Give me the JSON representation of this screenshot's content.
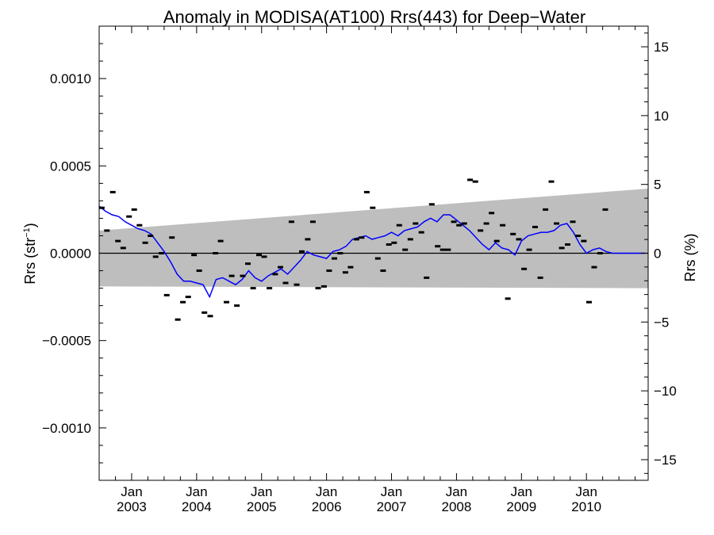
{
  "chart_data": {
    "type": "scatter",
    "title": "Anomaly in MODISA(AT100) Rrs(443) for Deep−Water",
    "ylabel_left": "Rrs (str",
    "ylabel_left_sup": "−1",
    "ylabel_left_close": ")",
    "ylabel_right": "Rrs (%)",
    "xlim": [
      2002.5,
      2010.95
    ],
    "ylim_left": [
      -0.0013,
      0.0013
    ],
    "ylim_right": [
      -16.5,
      16.5
    ],
    "y_ticks_left": [
      {
        "value": 0.001,
        "label": "0.0010"
      },
      {
        "value": 0.0005,
        "label": "0.0005"
      },
      {
        "value": 0.0,
        "label": "0.0000"
      },
      {
        "value": -0.0005,
        "label": "−0.0005"
      },
      {
        "value": -0.001,
        "label": "−0.0010"
      }
    ],
    "y_ticks_right": [
      {
        "value": 15,
        "label": "15"
      },
      {
        "value": 10,
        "label": "10"
      },
      {
        "value": 5,
        "label": "5"
      },
      {
        "value": 0,
        "label": "0"
      },
      {
        "value": -5,
        "label": "−5"
      },
      {
        "value": -10,
        "label": "−10"
      },
      {
        "value": -15,
        "label": "−15"
      }
    ],
    "x_ticks": [
      {
        "value": 2003,
        "month": "Jan",
        "year": "2003"
      },
      {
        "value": 2004,
        "month": "Jan",
        "year": "2004"
      },
      {
        "value": 2005,
        "month": "Jan",
        "year": "2005"
      },
      {
        "value": 2006,
        "month": "Jan",
        "year": "2006"
      },
      {
        "value": 2007,
        "month": "Jan",
        "year": "2007"
      },
      {
        "value": 2008,
        "month": "Jan",
        "year": "2008"
      },
      {
        "value": 2009,
        "month": "Jan",
        "year": "2009"
      },
      {
        "value": 2010,
        "month": "Jan",
        "year": "2010"
      }
    ],
    "zero_line": 0.0,
    "uncertainty_band": {
      "x": [
        2002.5,
        2010.95
      ],
      "lower": [
        -0.00019,
        -0.0002
      ],
      "upper": [
        0.00013,
        0.00037
      ],
      "color": "#bebebe"
    },
    "points": [
      [
        2002.54,
        0.00026
      ],
      [
        2002.62,
        0.00013
      ],
      [
        2002.71,
        0.00035
      ],
      [
        2002.79,
        7e-05
      ],
      [
        2002.87,
        3e-05
      ],
      [
        2002.96,
        0.00021
      ],
      [
        2003.04,
        0.00025
      ],
      [
        2003.12,
        0.00016
      ],
      [
        2003.21,
        6e-05
      ],
      [
        2003.29,
        0.0001
      ],
      [
        2003.37,
        -2e-05
      ],
      [
        2003.46,
        0.0
      ],
      [
        2003.54,
        -0.00024
      ],
      [
        2003.62,
        9e-05
      ],
      [
        2003.71,
        -0.00038
      ],
      [
        2003.79,
        -0.00028
      ],
      [
        2003.87,
        -0.00025
      ],
      [
        2003.96,
        -1e-05
      ],
      [
        2004.04,
        -0.0001
      ],
      [
        2004.12,
        -0.00034
      ],
      [
        2004.21,
        -0.00036
      ],
      [
        2004.29,
        0.0
      ],
      [
        2004.37,
        7e-05
      ],
      [
        2004.46,
        -0.00028
      ],
      [
        2004.54,
        -0.00013
      ],
      [
        2004.62,
        -0.0003
      ],
      [
        2004.71,
        -0.00013
      ],
      [
        2004.79,
        -6e-05
      ],
      [
        2004.87,
        -0.0002
      ],
      [
        2004.96,
        -1e-05
      ],
      [
        2005.04,
        -2e-05
      ],
      [
        2005.12,
        -0.0002
      ],
      [
        2005.21,
        -0.00012
      ],
      [
        2005.29,
        -8e-05
      ],
      [
        2005.37,
        -0.00017
      ],
      [
        2005.46,
        0.00018
      ],
      [
        2005.54,
        -0.00018
      ],
      [
        2005.62,
        1e-05
      ],
      [
        2005.71,
        8e-05
      ],
      [
        2005.79,
        0.00018
      ],
      [
        2005.87,
        -0.0002
      ],
      [
        2005.96,
        -0.00019
      ],
      [
        2006.04,
        -0.0001
      ],
      [
        2006.12,
        -3e-05
      ],
      [
        2006.21,
        0.0
      ],
      [
        2006.29,
        -0.00011
      ],
      [
        2006.37,
        -8e-05
      ],
      [
        2006.46,
        8e-05
      ],
      [
        2006.54,
        9e-05
      ],
      [
        2006.62,
        0.00035
      ],
      [
        2006.71,
        0.00026
      ],
      [
        2006.79,
        -3e-05
      ],
      [
        2006.87,
        -0.0001
      ],
      [
        2006.96,
        5e-05
      ],
      [
        2007.04,
        6e-05
      ],
      [
        2007.12,
        0.00016
      ],
      [
        2007.21,
        2e-05
      ],
      [
        2007.29,
        8e-05
      ],
      [
        2007.37,
        0.00017
      ],
      [
        2007.46,
        0.00012
      ],
      [
        2007.54,
        -0.00014
      ],
      [
        2007.62,
        0.00028
      ],
      [
        2007.71,
        4e-05
      ],
      [
        2007.79,
        2e-05
      ],
      [
        2007.87,
        2e-05
      ],
      [
        2007.96,
        0.00018
      ],
      [
        2008.04,
        0.00016
      ],
      [
        2008.12,
        0.00017
      ],
      [
        2008.21,
        0.00042
      ],
      [
        2008.29,
        0.00041
      ],
      [
        2008.37,
        0.00013
      ],
      [
        2008.46,
        0.00017
      ],
      [
        2008.54,
        0.00023
      ],
      [
        2008.62,
        7e-05
      ],
      [
        2008.71,
        0.00016
      ],
      [
        2008.79,
        -0.00026
      ],
      [
        2008.87,
        0.00011
      ],
      [
        2008.96,
        8e-05
      ],
      [
        2009.04,
        -9e-05
      ],
      [
        2009.12,
        2e-05
      ],
      [
        2009.21,
        0.00015
      ],
      [
        2009.29,
        -0.00014
      ],
      [
        2009.37,
        0.00025
      ],
      [
        2009.46,
        0.00041
      ],
      [
        2009.54,
        0.00017
      ],
      [
        2009.62,
        3e-05
      ],
      [
        2009.71,
        5e-05
      ],
      [
        2009.79,
        0.00018
      ],
      [
        2009.87,
        0.0001
      ],
      [
        2009.96,
        7e-05
      ],
      [
        2010.04,
        -0.00028
      ],
      [
        2010.12,
        -8e-05
      ],
      [
        2010.21,
        0.0
      ],
      [
        2010.29,
        0.00025
      ]
    ],
    "running_mean": {
      "color": "#0000ff",
      "x": [
        2002.5,
        2002.6,
        2002.7,
        2002.8,
        2002.9,
        2003.0,
        2003.1,
        2003.2,
        2003.3,
        2003.4,
        2003.5,
        2003.6,
        2003.7,
        2003.8,
        2003.9,
        2004.0,
        2004.1,
        2004.2,
        2004.3,
        2004.4,
        2004.5,
        2004.6,
        2004.7,
        2004.8,
        2004.9,
        2005.0,
        2005.1,
        2005.2,
        2005.3,
        2005.4,
        2005.5,
        2005.6,
        2005.7,
        2005.8,
        2005.9,
        2006.0,
        2006.1,
        2006.2,
        2006.3,
        2006.4,
        2006.5,
        2006.6,
        2006.7,
        2006.8,
        2006.9,
        2007.0,
        2007.1,
        2007.2,
        2007.3,
        2007.4,
        2007.5,
        2007.6,
        2007.7,
        2007.8,
        2007.9,
        2008.0,
        2008.1,
        2008.2,
        2008.3,
        2008.4,
        2008.5,
        2008.6,
        2008.7,
        2008.8,
        2008.9,
        2009.0,
        2009.1,
        2009.2,
        2009.3,
        2009.4,
        2009.5,
        2009.6,
        2009.7,
        2009.8,
        2009.9,
        2010.0,
        2010.1,
        2010.2,
        2010.3,
        2010.4,
        2010.5,
        2010.6,
        2010.7,
        2010.8,
        2010.9
      ],
      "y": [
        0.00027,
        0.00024,
        0.00022,
        0.00021,
        0.00018,
        0.00016,
        0.00014,
        0.00013,
        0.00011,
        6e-05,
        1e-05,
        -5e-05,
        -0.00012,
        -0.00016,
        -0.00016,
        -0.00017,
        -0.00018,
        -0.00025,
        -0.00015,
        -0.00014,
        -0.00016,
        -0.00018,
        -0.00015,
        -0.0001,
        -0.00014,
        -0.00016,
        -0.00013,
        -0.00011,
        -9e-05,
        -0.00012,
        -8e-05,
        -4e-05,
        1e-05,
        -1e-05,
        -2e-05,
        -3e-05,
        1e-05,
        2e-05,
        4e-05,
        8e-05,
        9e-05,
        0.0001,
        8e-05,
        9e-05,
        0.0001,
        0.00012,
        0.0001,
        0.00013,
        0.00014,
        0.00015,
        0.00018,
        0.0002,
        0.00018,
        0.00022,
        0.00022,
        0.00019,
        0.00016,
        0.00013,
        9e-05,
        5e-05,
        2e-05,
        6e-05,
        3e-05,
        2e-05,
        -1e-05,
        7e-05,
        0.0001,
        0.00011,
        0.00012,
        0.00012,
        0.00013,
        0.00016,
        0.00017,
        0.00012,
        5e-05,
        0.0,
        2e-05,
        3e-05,
        1e-05,
        0.0,
        0.0,
        0.0,
        0.0,
        0.0,
        0.0
      ]
    }
  }
}
